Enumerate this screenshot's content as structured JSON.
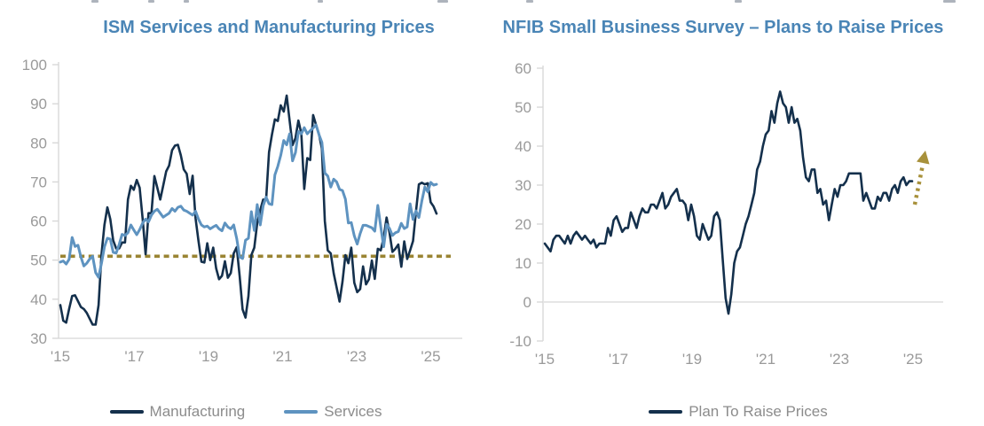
{
  "page": {
    "background": "#ffffff"
  },
  "colors": {
    "title_blue": "#4a85b6",
    "manufacturing_navy": "#14304c",
    "services_blue": "#5e93c0",
    "reference_gold": "#9a8433",
    "arrow_gold": "#a8913b",
    "axis_gray": "#d6d6d6",
    "tick_label_gray": "#9a9a9a",
    "legend_gray": "#8c8c8c"
  },
  "chart_data": [
    {
      "type": "line",
      "title": "ISM Services and Manufacturing Prices",
      "x_tick_labels": [
        "'15",
        "'17",
        "'19",
        "'21",
        "'23",
        "'25"
      ],
      "yticks": [
        30,
        40,
        50,
        60,
        70,
        80,
        90,
        100
      ],
      "ylim": [
        30,
        100
      ],
      "grid": false,
      "legend_position": "bottom",
      "x_range_note": "monthly, Jan 2015 - Sep 2025",
      "reference_line": {
        "value": 51,
        "color": "#9a8433",
        "style": "dotted"
      },
      "series": [
        {
          "name": "Manufacturing",
          "color": "#14304c",
          "values": [
            38.5,
            34.5,
            34.0,
            37.5,
            40.8,
            41.0,
            39.5,
            38.0,
            37.5,
            36.5,
            35.0,
            33.5,
            33.5,
            38.5,
            51.5,
            59.0,
            63.5,
            60.5,
            55.0,
            53.0,
            53.0,
            54.5,
            54.5,
            65.5,
            69.0,
            68.0,
            70.5,
            68.5,
            60.5,
            51.5,
            62.0,
            62.0,
            71.5,
            68.5,
            65.5,
            69.0,
            72.7,
            74.2,
            78.1,
            79.3,
            79.5,
            76.8,
            73.2,
            72.1,
            66.9,
            71.6,
            60.7,
            54.9,
            49.6,
            49.4,
            54.3,
            50.0,
            53.2,
            47.9,
            45.1,
            46.0,
            49.7,
            45.5,
            46.7,
            51.7,
            53.3,
            45.9,
            37.4,
            35.3,
            40.8,
            51.3,
            53.2,
            59.5,
            62.8,
            65.5,
            65.4,
            77.6,
            82.1,
            86.0,
            85.6,
            89.6,
            88.0,
            92.1,
            85.7,
            79.4,
            81.2,
            85.7,
            82.4,
            68.2,
            76.1,
            75.6,
            87.1,
            84.6,
            82.2,
            78.5,
            60.0,
            52.5,
            51.7,
            46.6,
            43.0,
            39.4,
            44.5,
            51.3,
            49.2,
            53.2,
            44.2,
            41.8,
            42.6,
            48.4,
            43.8,
            45.1,
            49.9,
            45.2,
            52.9,
            52.5,
            55.8,
            60.9,
            57.0,
            52.1,
            52.9,
            54.0,
            48.3,
            54.8,
            50.3,
            52.5,
            54.9,
            62.4,
            69.4,
            69.8,
            69.4,
            69.7,
            64.8,
            63.7,
            61.9
          ]
        },
        {
          "name": "Services",
          "color": "#5e93c0",
          "values": [
            49.5,
            49.8,
            49.0,
            50.2,
            55.8,
            53.5,
            53.8,
            50.8,
            48.5,
            49.2,
            50.3,
            51.0,
            46.8,
            45.6,
            49.2,
            53.4,
            55.6,
            55.4,
            52.0,
            51.8,
            54.0,
            56.6,
            56.3,
            57.0,
            59.0,
            57.7,
            56.5,
            57.8,
            59.5,
            60.5,
            59.8,
            61.5,
            62.5,
            63.0,
            62.0,
            61.0,
            61.5,
            62.0,
            63.2,
            62.5,
            63.5,
            63.8,
            62.8,
            62.5,
            62.0,
            61.5,
            62.5,
            60.5,
            59.0,
            58.5,
            58.7,
            58.0,
            58.5,
            58.9,
            58.0,
            57.5,
            59.5,
            58.5,
            58.0,
            59.0,
            55.5,
            50.8,
            50.4,
            55.1,
            55.6,
            62.4,
            57.6,
            64.2,
            59.0,
            63.9,
            66.1,
            64.4,
            64.2,
            71.8,
            74.0,
            76.8,
            80.6,
            79.5,
            82.3,
            75.4,
            77.5,
            82.9,
            82.3,
            83.9,
            82.3,
            83.1,
            83.8,
            84.6,
            82.1,
            80.1,
            72.3,
            71.5,
            68.7,
            70.7,
            70.0,
            68.1,
            67.8,
            65.6,
            59.5,
            59.6,
            56.2,
            54.1,
            56.8,
            58.9,
            58.9,
            58.6,
            58.3,
            57.4,
            64.0,
            58.6,
            53.4,
            59.2,
            58.1,
            56.3,
            57.0,
            57.3,
            59.4,
            58.1,
            58.5,
            64.4,
            60.4,
            62.6,
            60.9,
            65.1,
            68.7,
            67.5,
            69.9,
            69.2,
            69.4
          ]
        }
      ]
    },
    {
      "type": "line",
      "title": "NFIB Small Business Survey – Plans to Raise Prices",
      "x_tick_labels": [
        "'15",
        "'17",
        "'19",
        "'21",
        "'23",
        "'25"
      ],
      "yticks": [
        -10,
        0,
        10,
        20,
        30,
        40,
        50,
        60
      ],
      "ylim": [
        -10,
        60
      ],
      "grid": false,
      "legend_position": "bottom",
      "x_range_note": "monthly, Jan 2015 - Sep 2025",
      "zero_line": true,
      "annotation": {
        "type": "arrow",
        "direction": "up",
        "style": "dotted",
        "color": "#a8913b"
      },
      "series": [
        {
          "name": "Plan To Raise Prices",
          "color": "#14304c",
          "values": [
            15,
            14,
            13,
            16,
            17,
            17,
            16,
            15,
            17,
            15,
            17,
            18,
            17,
            16,
            17,
            16,
            15,
            16,
            14,
            15,
            15,
            15,
            19,
            17,
            21,
            22,
            20,
            18,
            19,
            19,
            23,
            21,
            19,
            22,
            24,
            23,
            23,
            25,
            25,
            24,
            26,
            28,
            24,
            25,
            27,
            28,
            29,
            26,
            26,
            25,
            21,
            25,
            22,
            17,
            16,
            20,
            18,
            16,
            17,
            22,
            23,
            21,
            11,
            1,
            -3,
            2,
            10,
            13,
            14,
            17,
            20,
            22,
            25,
            28,
            34,
            36,
            40,
            43,
            44,
            49,
            46,
            51,
            54,
            51,
            50,
            46,
            50,
            46,
            47,
            44,
            37,
            32,
            31,
            34,
            34,
            28,
            29,
            25,
            26,
            21,
            25,
            29,
            27,
            30,
            30,
            31,
            33,
            33,
            33,
            33,
            33,
            26,
            28,
            26,
            24,
            24,
            27,
            26,
            28,
            28,
            26,
            29,
            30,
            28,
            31,
            32,
            30,
            31,
            31
          ]
        }
      ]
    }
  ]
}
